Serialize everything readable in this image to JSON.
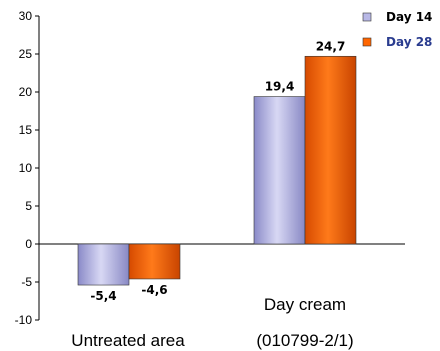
{
  "chart_data": {
    "type": "bar",
    "categories": [
      "Untreated area",
      "Day cream\n(010799-2/1)"
    ],
    "series": [
      {
        "name": "Day 14",
        "values": [
          -5.4,
          19.4
        ],
        "labels": [
          "-5,4",
          "19,4"
        ],
        "color": "#b8b8e6"
      },
      {
        "name": "Day 28",
        "values": [
          -4.6,
          24.7
        ],
        "labels": [
          "-4,6",
          "24,7"
        ],
        "color": "#ff6600"
      }
    ],
    "ylim": [
      -10,
      30
    ],
    "yticks": [
      -10,
      -5,
      0,
      5,
      10,
      15,
      20,
      25,
      30
    ],
    "legend_position": "top-right",
    "legend_text_colors": [
      "#000000",
      "#2a3c8f"
    ]
  }
}
